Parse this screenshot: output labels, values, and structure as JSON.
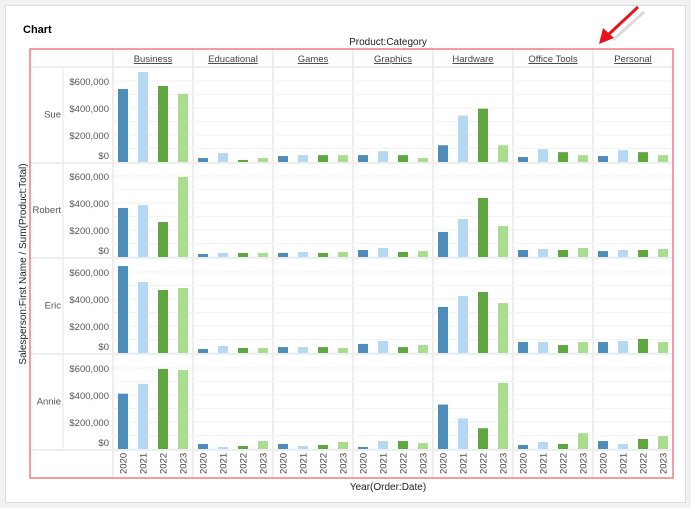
{
  "panel_title": "Chart",
  "chart_data": {
    "type": "bar",
    "layout": "faceted grid (rows: salesperson, columns: product category, x: year)",
    "column_header": "Product:Category",
    "xlabel": "Year(Order:Date)",
    "ylabel": "Salesperson:First Name / Sum(Product:Total)",
    "columns": [
      "Business",
      "Educational",
      "Games",
      "Graphics",
      "Hardware",
      "Office Tools",
      "Personal"
    ],
    "rows": [
      "Sue",
      "Robert",
      "Eric",
      "Annie"
    ],
    "categories": [
      "2020",
      "2021",
      "2022",
      "2023"
    ],
    "colors": [
      "#4e8dbb",
      "#b5d9f2",
      "#60a742",
      "#aadd90"
    ],
    "y_ticks": [
      "$0",
      "$200,000",
      "$400,000",
      "$600,000"
    ],
    "ylim": [
      0,
      700000
    ],
    "grid": true,
    "values": {
      "Sue": {
        "Business": [
          541000,
          666000,
          563000,
          505000
        ],
        "Educational": [
          29000,
          66000,
          15000,
          29000
        ],
        "Games": [
          44000,
          51000,
          51000,
          51000
        ],
        "Graphics": [
          51000,
          80000,
          51000,
          29000
        ],
        "Hardware": [
          124000,
          344000,
          395000,
          124000
        ],
        "Office Tools": [
          37000,
          95000,
          73000,
          51000
        ],
        "Personal": [
          44000,
          88000,
          73000,
          51000
        ]
      },
      "Robert": {
        "Business": [
          363000,
          385000,
          259000,
          593000
        ],
        "Educational": [
          22000,
          30000,
          30000,
          30000
        ],
        "Games": [
          30000,
          37000,
          30000,
          37000
        ],
        "Graphics": [
          52000,
          67000,
          37000,
          44000
        ],
        "Hardware": [
          185000,
          281000,
          437000,
          230000
        ],
        "Office Tools": [
          52000,
          59000,
          52000,
          67000
        ],
        "Personal": [
          44000,
          52000,
          52000,
          59000
        ]
      },
      "Eric": {
        "Business": [
          644000,
          526000,
          467000,
          481000
        ],
        "Educational": [
          30000,
          52000,
          37000,
          37000
        ],
        "Games": [
          44000,
          44000,
          44000,
          37000
        ],
        "Graphics": [
          67000,
          89000,
          44000,
          59000
        ],
        "Hardware": [
          341000,
          422000,
          452000,
          370000
        ],
        "Office Tools": [
          81000,
          81000,
          59000,
          81000
        ],
        "Personal": [
          81000,
          89000,
          104000,
          81000
        ]
      },
      "Annie": {
        "Business": [
          410000,
          483000,
          593000,
          585000
        ],
        "Educational": [
          37000,
          15000,
          22000,
          59000
        ],
        "Games": [
          37000,
          22000,
          30000,
          52000
        ],
        "Graphics": [
          15000,
          59000,
          59000,
          44000
        ],
        "Hardware": [
          329000,
          227000,
          154000,
          490000
        ],
        "Office Tools": [
          30000,
          52000,
          37000,
          117000
        ],
        "Personal": [
          59000,
          37000,
          74000,
          96000
        ]
      }
    }
  },
  "annotation": {
    "type": "arrow",
    "color": "#e8141a",
    "highlight_color": "#f47c7c"
  }
}
